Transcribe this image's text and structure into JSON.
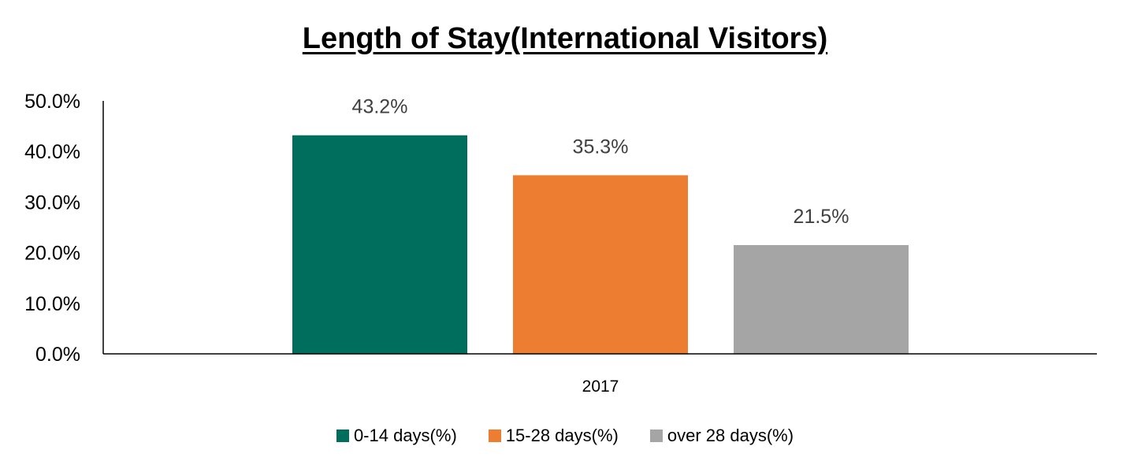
{
  "chart_data": {
    "type": "bar",
    "title": "Length of Stay(International Visitors)",
    "categories": [
      "2017"
    ],
    "series": [
      {
        "name": "0-14 days(%)",
        "values": [
          43.2
        ],
        "color": "#006E5C"
      },
      {
        "name": "15-28 days(%)",
        "values": [
          35.3
        ],
        "color": "#ED7D31"
      },
      {
        "name": "over 28 days(%)",
        "values": [
          21.5
        ],
        "color": "#A5A5A5"
      }
    ],
    "data_labels": [
      "43.2%",
      "35.3%",
      "21.5%"
    ],
    "y_ticks": [
      "0.0%",
      "10.0%",
      "20.0%",
      "30.0%",
      "40.0%",
      "50.0%"
    ],
    "ylim": [
      0,
      50
    ],
    "grid": false,
    "legend_position": "bottom"
  }
}
